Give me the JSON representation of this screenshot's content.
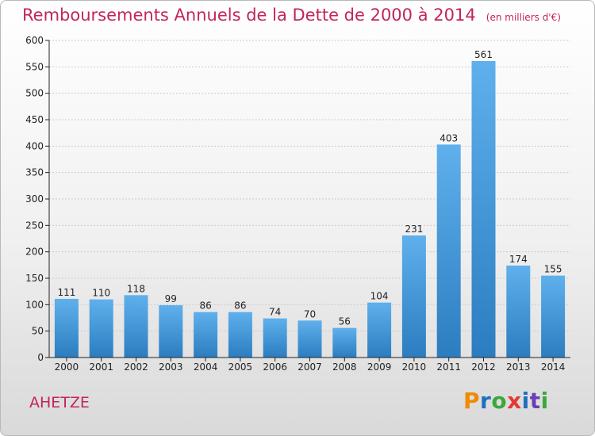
{
  "header": {
    "title": "Remboursements Annuels de la Dette de 2000 à 2014",
    "subtitle": "(en milliers d'€)"
  },
  "footer": {
    "place": "AHETZE",
    "logo_text": "Proxiti",
    "logo_colors": [
      "#f08a00",
      "#1f6fc0",
      "#3aa83a",
      "#e53935",
      "#1f6fc0",
      "#6a3fb5",
      "#3aa83a"
    ]
  },
  "colors": {
    "bar_light": "#5fb0ec",
    "bar_dark": "#2b7dc0",
    "title": "#c2255c",
    "axis": "#222222",
    "grid": "#cccccc"
  },
  "chart_data": {
    "type": "bar",
    "title": "Remboursements Annuels de la Dette de 2000 à 2014",
    "subtitle": "(en milliers d'€)",
    "categories": [
      "2000",
      "2001",
      "2002",
      "2003",
      "2004",
      "2005",
      "2006",
      "2007",
      "2008",
      "2009",
      "2010",
      "2011",
      "2012",
      "2013",
      "2014"
    ],
    "values": [
      111,
      110,
      118,
      99,
      86,
      86,
      74,
      70,
      56,
      104,
      231,
      403,
      561,
      174,
      155
    ],
    "ylim": [
      0,
      600
    ],
    "yticks": [
      0,
      50,
      100,
      150,
      200,
      250,
      300,
      350,
      400,
      450,
      500,
      550,
      600
    ],
    "grid": true,
    "data_labels": true
  }
}
